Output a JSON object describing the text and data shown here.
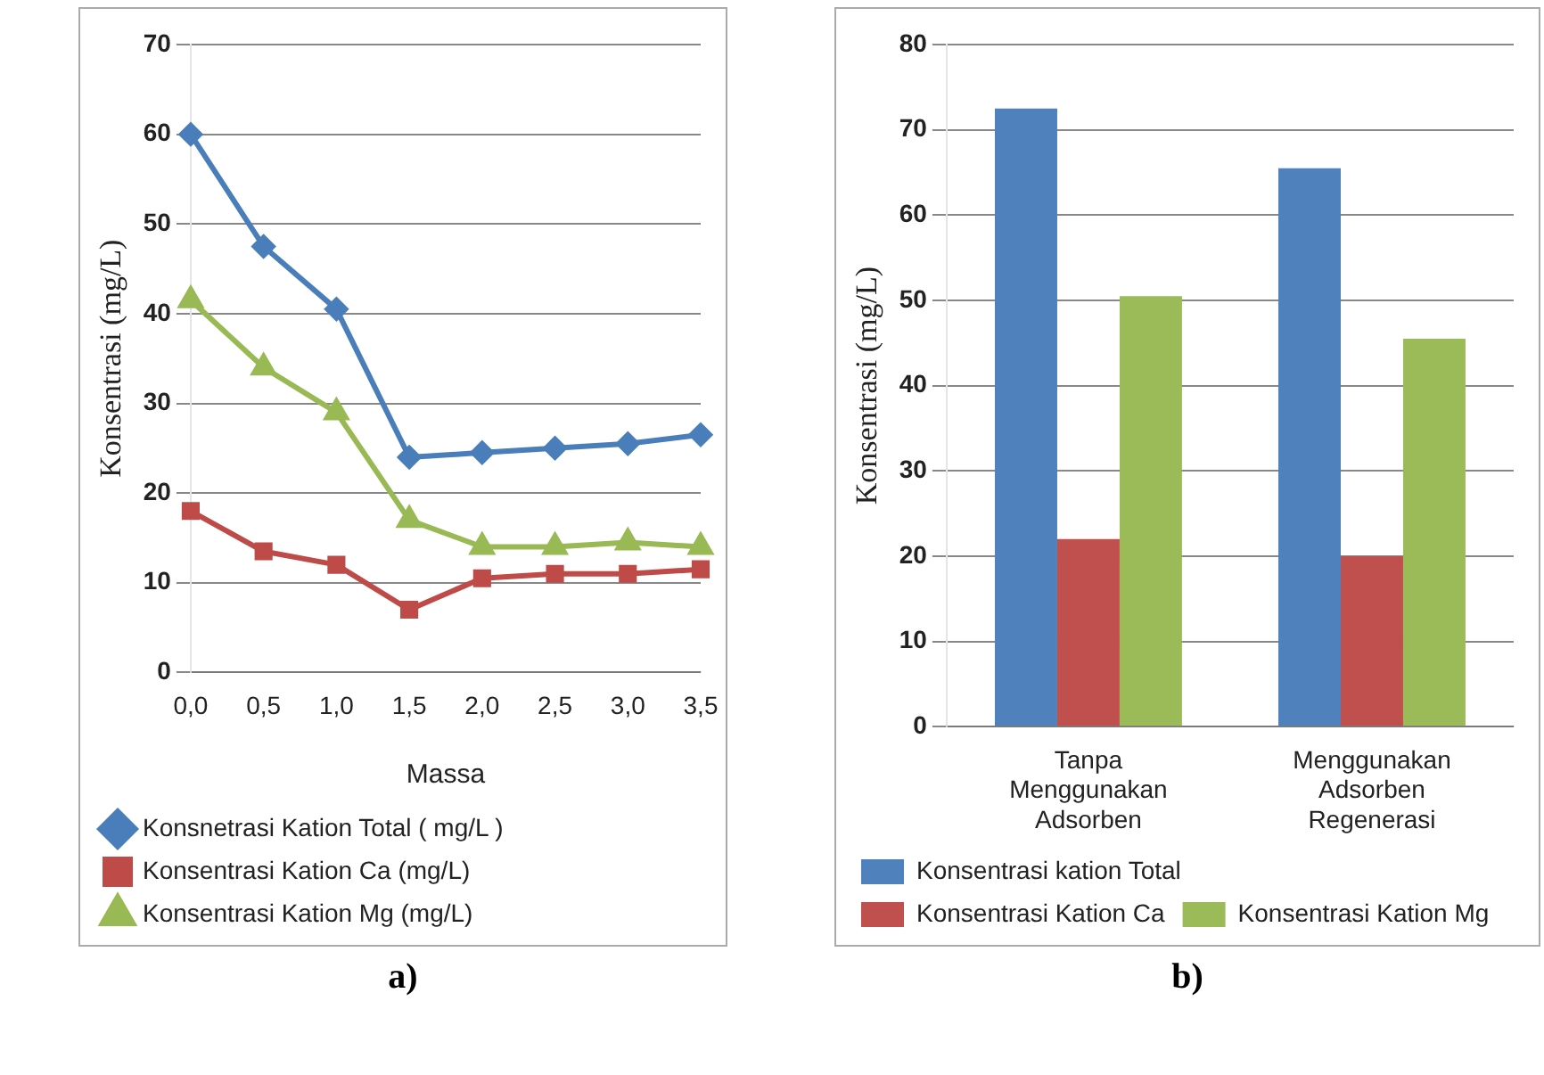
{
  "chart_data": [
    {
      "type": "line",
      "xlabel": "Massa",
      "ylabel": "Konsentrasi (mg/L)",
      "categories": [
        "0,0",
        "0,5",
        "1,0",
        "1,5",
        "2,0",
        "2,5",
        "3,0",
        "3,5"
      ],
      "series": [
        {
          "name": "Konsnetrasi Kation Total ( mg/L )",
          "color": "#4a7ebb",
          "marker": "diamond",
          "values": [
            60,
            47.5,
            40.5,
            24,
            24.5,
            25,
            25.5,
            26.5
          ]
        },
        {
          "name": "Konsentrasi Kation Ca (mg/L)",
          "color": "#be4b48",
          "marker": "square",
          "values": [
            18,
            13.5,
            12,
            7,
            10.5,
            11,
            11,
            11.5
          ]
        },
        {
          "name": "Konsentrasi Kation Mg (mg/L)",
          "color": "#98b954",
          "marker": "triangle",
          "values": [
            41.5,
            34,
            29,
            17,
            14,
            14,
            14.5,
            14
          ]
        }
      ],
      "ylim": [
        0,
        70
      ],
      "yticks": [
        0,
        10,
        20,
        30,
        40,
        50,
        60,
        70
      ],
      "grid": "y",
      "legend": "bottom",
      "annotations": [
        "a)"
      ]
    },
    {
      "type": "bar",
      "ylabel": "Konsentrasi (mg/L)",
      "categories": [
        "Tanpa Menggunakan Adsorben",
        "Menggunakan Adsorben Regenerasi"
      ],
      "series": [
        {
          "name": "Konsentrasi kation Total",
          "color": "#4f81bd",
          "values": [
            72.5,
            65.5
          ]
        },
        {
          "name": "Konsentrasi Kation Ca",
          "color": "#c0504d",
          "values": [
            22,
            20
          ]
        },
        {
          "name": "Konsentrasi Kation Mg",
          "color": "#9bbb59",
          "values": [
            50.5,
            45.5
          ]
        }
      ],
      "ylim": [
        0,
        80
      ],
      "yticks": [
        0,
        10,
        20,
        30,
        40,
        50,
        60,
        70,
        80
      ],
      "grid": "y",
      "legend": "bottom",
      "annotations": [
        "b)"
      ]
    }
  ]
}
